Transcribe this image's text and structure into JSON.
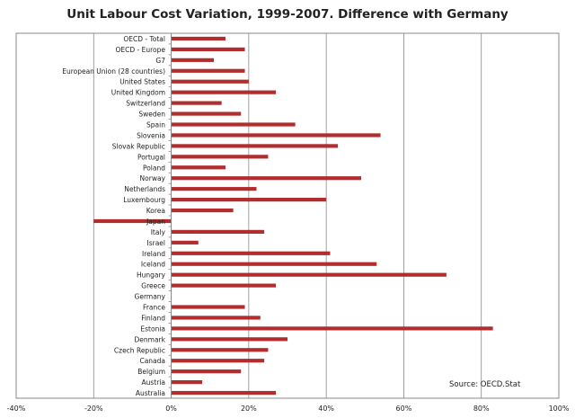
{
  "chart_data": {
    "type": "bar",
    "orientation": "horizontal",
    "title": "Unit Labour Cost Variation, 1999-2007. Difference with Germany",
    "xlabel": "",
    "ylabel": "",
    "xlim": [
      -0.4,
      1.0
    ],
    "x_ticks": [
      -0.4,
      -0.2,
      0.0,
      0.2,
      0.4,
      0.6,
      0.8,
      1.0
    ],
    "x_tick_labels": [
      "-40%",
      "-20%",
      "0%",
      "20%",
      "40%",
      "60%",
      "80%",
      "100%"
    ],
    "grid": true,
    "legend": "none",
    "bar_color": "#b22d2d",
    "source": "Source: OECD.Stat",
    "categories": [
      "OECD - Total",
      "OECD - Europe",
      "G7",
      "European Union (28 countries)",
      "United States",
      "United Kingdom",
      "Switzerland",
      "Sweden",
      "Spain",
      "Slovenia",
      "Slovak Republic",
      "Portugal",
      "Poland",
      "Norway",
      "Netherlands",
      "Luxembourg",
      "Korea",
      "Japan",
      "Italy",
      "Israel",
      "Ireland",
      "Iceland",
      "Hungary",
      "Greece",
      "Germany",
      "France",
      "Finland",
      "Estonia",
      "Denmark",
      "Czech Republic",
      "Canada",
      "Belgium",
      "Austria",
      "Australia"
    ],
    "values": [
      0.14,
      0.19,
      0.11,
      0.19,
      0.2,
      0.27,
      0.13,
      0.18,
      0.32,
      0.54,
      0.43,
      0.25,
      0.14,
      0.49,
      0.22,
      0.4,
      0.16,
      -0.2,
      0.24,
      0.07,
      0.41,
      0.53,
      0.71,
      0.27,
      0.0,
      0.19,
      0.23,
      0.83,
      0.3,
      0.25,
      0.24,
      0.18,
      0.08,
      0.27
    ]
  }
}
